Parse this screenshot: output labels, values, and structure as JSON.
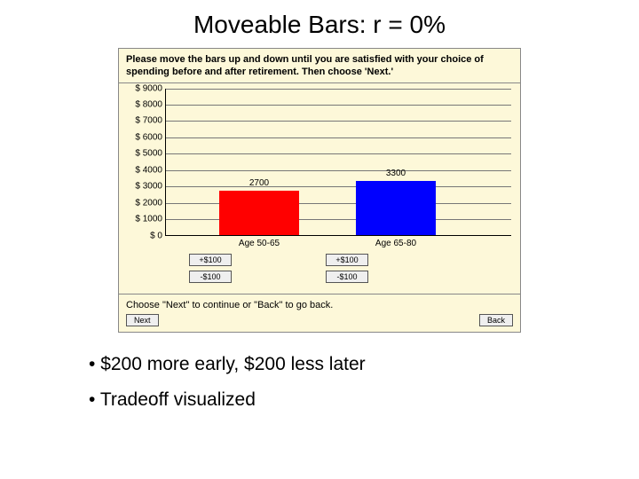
{
  "title": "Moveable Bars: r = 0%",
  "panel": {
    "background": "#fdf8d9",
    "instruction": "Please move the bars up and down until you are satisfied with your choice of spending before and after retirement. Then choose 'Next.'",
    "chart": {
      "type": "bar",
      "ylim": [
        0,
        9000
      ],
      "ytick_step": 1000,
      "ylabels": [
        "$ 0",
        "$ 1000",
        "$ 2000",
        "$ 3000",
        "$ 4000",
        "$ 5000",
        "$ 6000",
        "$ 7000",
        "$ 8000",
        "$ 9000"
      ],
      "grid_color": "#777777",
      "categories": [
        "Age 50-65",
        "Age 65-80"
      ],
      "values": [
        2700,
        3300
      ],
      "bar_colors": [
        "#ff0000",
        "#0000ff"
      ],
      "value_labels": [
        "2700",
        "3300"
      ]
    },
    "increment_buttons": {
      "up_label": "+$100",
      "down_label": "-$100"
    },
    "nav_instruction": "Choose \"Next\" to continue or \"Back\" to go back.",
    "next_label": "Next",
    "back_label": "Back"
  },
  "bullets": [
    "$200 more early, $200 less later",
    "Tradeoff visualized"
  ]
}
